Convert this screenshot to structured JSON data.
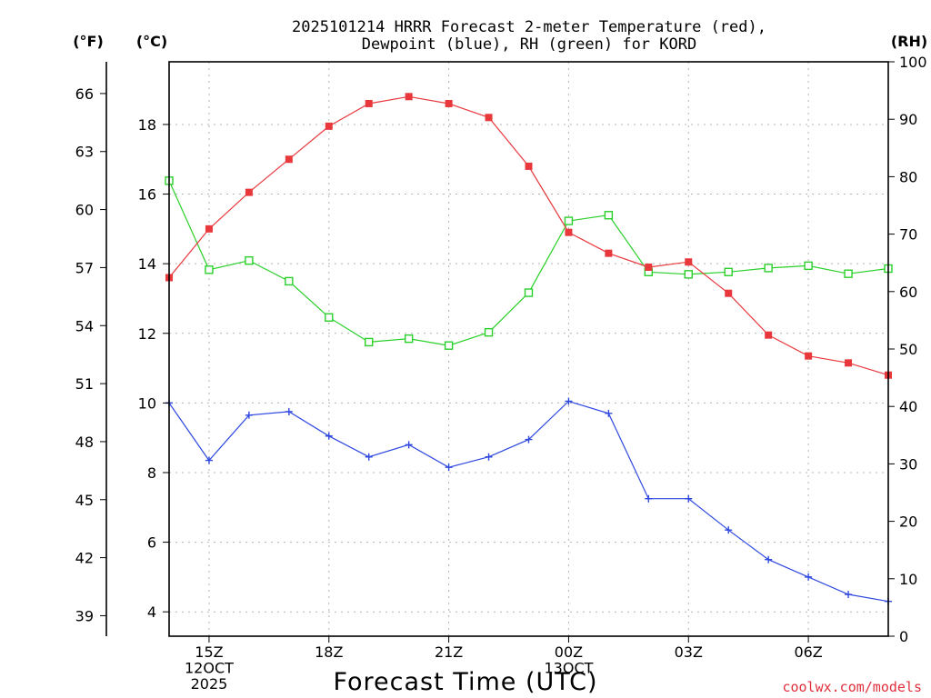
{
  "chart_data": {
    "type": "line",
    "title_lines": [
      "2025101214 HRRR Forecast 2-meter Temperature (red),",
      "Dewpoint (blue), RH (green) for KORD"
    ],
    "xlabel": "Forecast Time (UTC)",
    "credit": "coolwx.com/models",
    "x_hours": [
      14,
      15,
      16,
      17,
      18,
      19,
      20,
      21,
      22,
      23,
      24,
      25,
      26,
      27,
      28,
      29,
      30,
      31,
      32
    ],
    "x_range": [
      14,
      32
    ],
    "x_ticks": [
      {
        "hour": 15,
        "lines": [
          "15Z",
          "12OCT",
          "2025"
        ]
      },
      {
        "hour": 18,
        "lines": [
          "18Z"
        ]
      },
      {
        "hour": 21,
        "lines": [
          "21Z"
        ]
      },
      {
        "hour": 24,
        "lines": [
          "00Z",
          "13OCT"
        ]
      },
      {
        "hour": 27,
        "lines": [
          "03Z"
        ]
      },
      {
        "hour": 30,
        "lines": [
          "06Z"
        ]
      }
    ],
    "y_left_celsius": {
      "unit": "(°C)",
      "range": [
        3.3,
        19.8
      ],
      "ticks": [
        "4",
        "6",
        "8",
        "10",
        "12",
        "14",
        "16",
        "18"
      ]
    },
    "y_left_fahrenheit": {
      "unit": "(°F)",
      "ticks": [
        "39",
        "42",
        "45",
        "48",
        "51",
        "54",
        "57",
        "60",
        "63",
        "66"
      ]
    },
    "y_right_rh": {
      "unit": "(RH)",
      "range": [
        0,
        100
      ],
      "ticks": [
        "0",
        "10",
        "20",
        "30",
        "40",
        "50",
        "60",
        "70",
        "80",
        "90",
        "100"
      ]
    },
    "series": [
      {
        "name": "Temperature",
        "axis": "celsius",
        "color": "#e8383c",
        "marker": "filled-square",
        "values": [
          13.6,
          15.0,
          16.05,
          17.0,
          17.95,
          18.6,
          18.8,
          18.6,
          18.2,
          16.8,
          14.9,
          14.3,
          13.9,
          14.05,
          13.15,
          11.95,
          11.35,
          11.15,
          10.8
        ]
      },
      {
        "name": "Dewpoint",
        "axis": "celsius",
        "color": "#2e48e0",
        "marker": "plus",
        "values": [
          10.0,
          8.35,
          9.65,
          9.75,
          9.05,
          8.45,
          8.8,
          8.15,
          8.45,
          8.95,
          10.05,
          9.7,
          7.25,
          7.25,
          6.35,
          5.5,
          5.0,
          4.5,
          4.3
        ]
      },
      {
        "name": "RH",
        "axis": "rh",
        "color": "#2ad02a",
        "marker": "open-square",
        "values": [
          79.3,
          63.8,
          65.4,
          61.8,
          55.5,
          51.2,
          51.8,
          50.6,
          52.9,
          59.8,
          72.3,
          73.3,
          63.4,
          63.0,
          63.4,
          64.1,
          64.5,
          63.1,
          64.0
        ]
      }
    ]
  }
}
